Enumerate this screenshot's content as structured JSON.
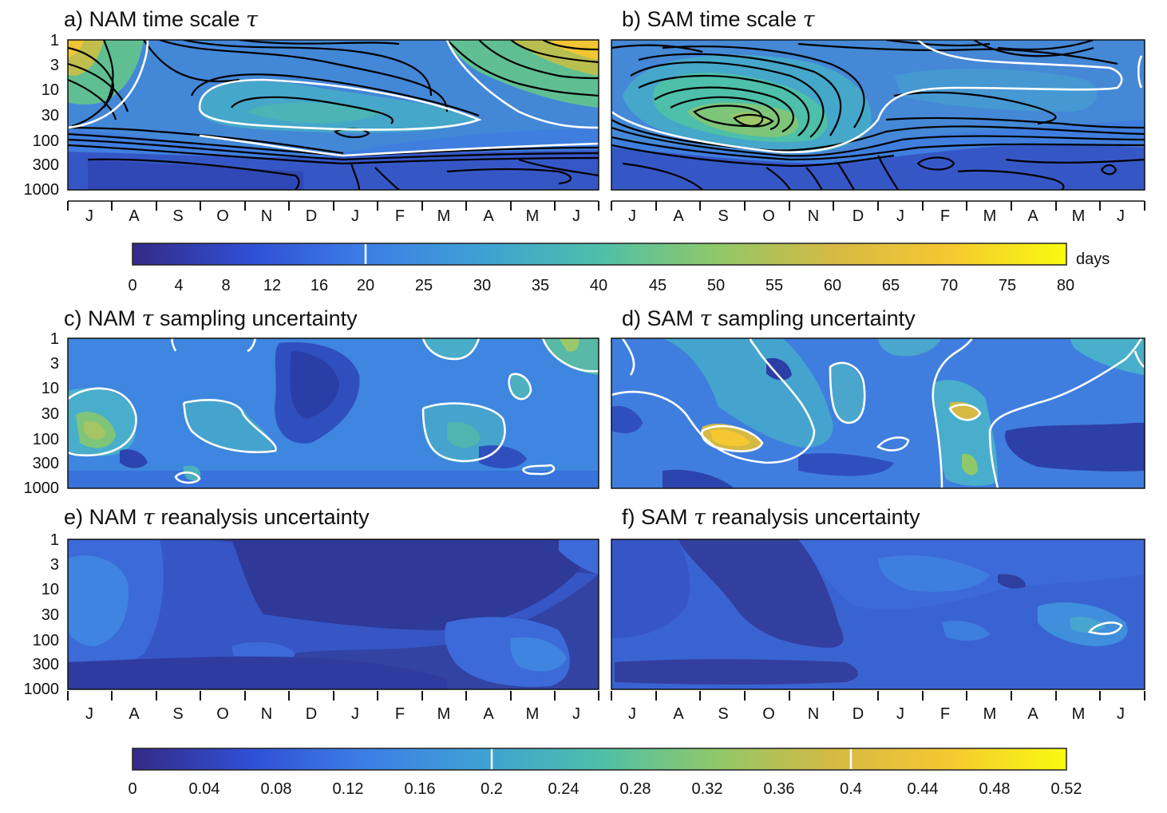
{
  "colormap": [
    "#352a87",
    "#2f4fd4",
    "#3d7ee6",
    "#3ea1d4",
    "#4ebfa8",
    "#8fc86a",
    "#d6b943",
    "#f5c831",
    "#f9fb0e"
  ],
  "contour_line_colors": {
    "lines": "#000000",
    "highlight": "#ffffff"
  },
  "axes": {
    "pressure_ticks": [
      "1",
      "3",
      "10",
      "30",
      "100",
      "300",
      "1000"
    ],
    "months_nam": [
      "J",
      "A",
      "S",
      "O",
      "N",
      "D",
      "J",
      "F",
      "M",
      "A",
      "M",
      "J"
    ],
    "months_sam": [
      "J",
      "A",
      "S",
      "O",
      "N",
      "D",
      "J",
      "F",
      "M",
      "A",
      "M",
      "J"
    ]
  },
  "colorbars": [
    {
      "ticks": [
        "0",
        "4",
        "8",
        "12",
        "16",
        "20",
        "25",
        "30",
        "35",
        "40",
        "45",
        "50",
        "55",
        "60",
        "65",
        "70",
        "75",
        "80"
      ],
      "unit": "days",
      "range": [
        0,
        80
      ],
      "highlight_levels": [
        "20"
      ]
    },
    {
      "ticks": [
        "0",
        "0.04",
        "0.08",
        "0.12",
        "0.16",
        "0.2",
        "0.24",
        "0.28",
        "0.32",
        "0.36",
        "0.4",
        "0.44",
        "0.48",
        "0.52"
      ],
      "unit": "",
      "range": [
        0,
        0.52
      ],
      "highlight_levels": [
        "0.2",
        "0.4"
      ]
    }
  ],
  "chart_data": [
    {
      "type": "heatmap",
      "title": "a) NAM time scale",
      "symbol": "τ",
      "xlabel": "",
      "ylabel": "",
      "x_categories": [
        "J",
        "A",
        "S",
        "O",
        "N",
        "D",
        "J",
        "F",
        "M",
        "A",
        "M",
        "J"
      ],
      "y_ticks": [
        "1",
        "3",
        "10",
        "30",
        "100",
        "300",
        "1000"
      ],
      "y_scale": "log",
      "colorbar": 0,
      "color_range": [
        0,
        80
      ]
    },
    {
      "type": "heatmap",
      "title": "b) SAM time scale",
      "symbol": "τ",
      "xlabel": "",
      "ylabel": "",
      "x_categories": [
        "J",
        "A",
        "S",
        "O",
        "N",
        "D",
        "J",
        "F",
        "M",
        "A",
        "M",
        "J"
      ],
      "y_ticks": [
        "1",
        "3",
        "10",
        "30",
        "100",
        "300",
        "1000"
      ],
      "y_scale": "log",
      "colorbar": 0,
      "color_range": [
        0,
        80
      ]
    },
    {
      "type": "heatmap",
      "title": "c) NAM",
      "symbol": "τ",
      "title_suffix": "sampling uncertainty",
      "xlabel": "",
      "ylabel": "",
      "y_ticks": [
        "1",
        "3",
        "10",
        "30",
        "100",
        "300",
        "1000"
      ],
      "y_scale": "log",
      "colorbar": 1,
      "color_range": [
        0,
        0.52
      ]
    },
    {
      "type": "heatmap",
      "title": "d) SAM",
      "symbol": "τ",
      "title_suffix": "sampling uncertainty",
      "xlabel": "",
      "ylabel": "",
      "y_ticks": [
        "1",
        "3",
        "10",
        "30",
        "100",
        "300",
        "1000"
      ],
      "y_scale": "log",
      "colorbar": 1,
      "color_range": [
        0,
        0.52
      ]
    },
    {
      "type": "heatmap",
      "title": "e) NAM",
      "symbol": "τ",
      "title_suffix": "reanalysis uncertainty",
      "xlabel": "",
      "ylabel": "",
      "x_categories": [
        "J",
        "A",
        "S",
        "O",
        "N",
        "D",
        "J",
        "F",
        "M",
        "A",
        "M",
        "J"
      ],
      "y_ticks": [
        "1",
        "3",
        "10",
        "30",
        "100",
        "300",
        "1000"
      ],
      "y_scale": "log",
      "colorbar": 1,
      "color_range": [
        0,
        0.52
      ]
    },
    {
      "type": "heatmap",
      "title": "f) SAM",
      "symbol": "τ",
      "title_suffix": "reanalysis uncertainty",
      "xlabel": "",
      "ylabel": "",
      "x_categories": [
        "J",
        "A",
        "S",
        "O",
        "N",
        "D",
        "J",
        "F",
        "M",
        "A",
        "M",
        "J"
      ],
      "y_ticks": [
        "1",
        "3",
        "10",
        "30",
        "100",
        "300",
        "1000"
      ],
      "y_scale": "log",
      "colorbar": 1,
      "color_range": [
        0,
        0.52
      ]
    }
  ]
}
